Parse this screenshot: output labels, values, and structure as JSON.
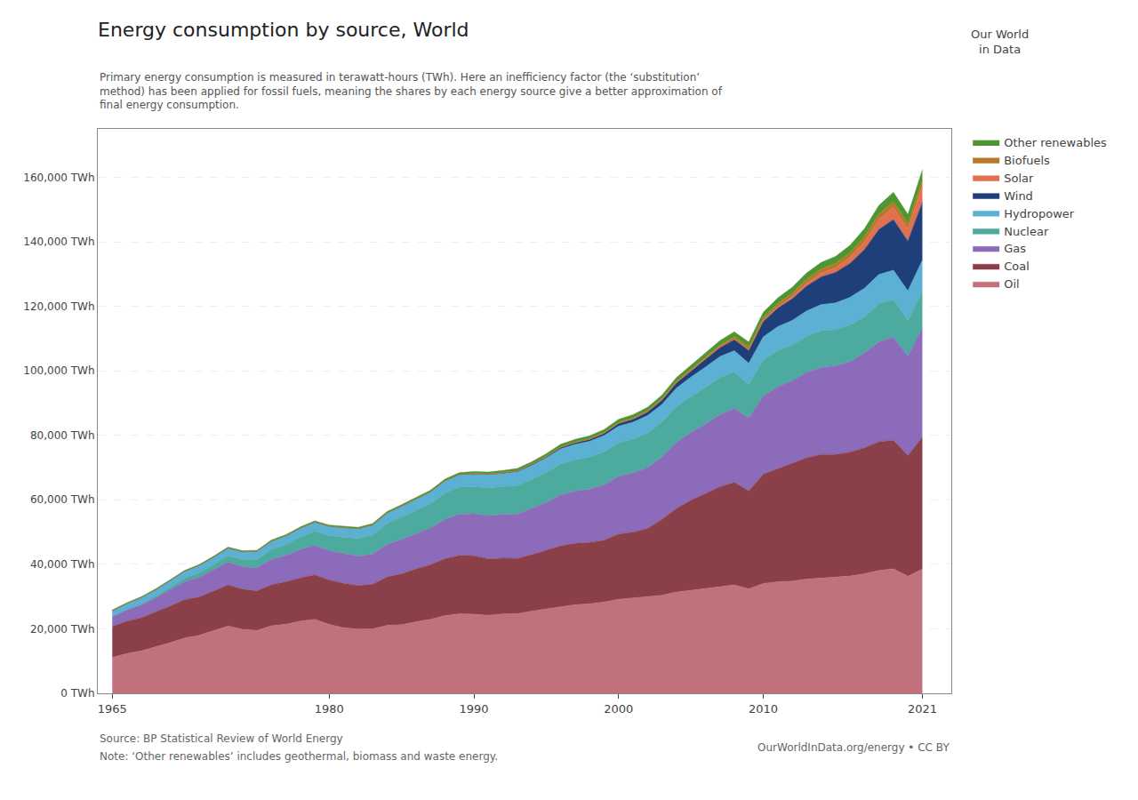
{
  "chart_data": {
    "type": "area",
    "title": "Energy consumption by source, World",
    "subtitle": "Primary energy consumption is measured in terawatt-hours (TWh). Here an inefficiency factor (the ‘substitution’\nmethod) has been applied for fossil fuels, meaning the shares by each energy source give a better approximation of\nfinal energy consumption.",
    "annotations": [
      "Source: BP Statistical Review of World Energy",
      "Note: ‘Other renewables’ includes geothermal, biomass and waste energy.",
      "OurWorldInData.org/energy • CC BY",
      "Our World\nin Data"
    ],
    "stacked": true,
    "grid": "y",
    "legend": "right",
    "x": [
      1965,
      1966,
      1967,
      1968,
      1969,
      1970,
      1971,
      1972,
      1973,
      1974,
      1975,
      1976,
      1977,
      1978,
      1979,
      1980,
      1981,
      1982,
      1983,
      1984,
      1985,
      1986,
      1987,
      1988,
      1989,
      1990,
      1991,
      1992,
      1993,
      1994,
      1995,
      1996,
      1997,
      1998,
      1999,
      2000,
      2001,
      2002,
      2003,
      2004,
      2005,
      2006,
      2007,
      2008,
      2009,
      2010,
      2011,
      2012,
      2013,
      2014,
      2015,
      2016,
      2017,
      2018,
      2019,
      2020,
      2021
    ],
    "xlim": [
      1964,
      2023
    ],
    "xticks": [
      1965,
      1980,
      1990,
      2000,
      2010,
      2021
    ],
    "ylim": [
      0,
      175000
    ],
    "yticks": [
      {
        "value": 0,
        "label": "0 TWh"
      },
      {
        "value": 20000,
        "label": "20,000 TWh"
      },
      {
        "value": 40000,
        "label": "40,000 TWh"
      },
      {
        "value": 60000,
        "label": "60,000 TWh"
      },
      {
        "value": 80000,
        "label": "80,000 TWh"
      },
      {
        "value": 100000,
        "label": "100,000 TWh"
      },
      {
        "value": 120000,
        "label": "120,000 TWh"
      },
      {
        "value": 140000,
        "label": "140,000 TWh"
      },
      {
        "value": 160000,
        "label": "160,000 TWh"
      }
    ],
    "series": [
      {
        "name": "Oil",
        "color": "#c0717c",
        "values": [
          11104,
          12301,
          13174,
          14326,
          15690,
          17135,
          17990,
          19424,
          20856,
          19839,
          19488,
          20952,
          21419,
          22396,
          22916,
          21382,
          20339,
          19911,
          19980,
          21073,
          21256,
          22198,
          22949,
          24094,
          24657,
          24533,
          24207,
          24622,
          24696,
          25475,
          26177,
          26857,
          27458,
          27779,
          28309,
          29149,
          29496,
          30017,
          30394,
          31406,
          32001,
          32563,
          33171,
          33617,
          32407,
          34035,
          34559,
          34808,
          35399,
          35685,
          35928,
          36359,
          37059,
          38103,
          38609,
          36310,
          38501
        ]
      },
      {
        "name": "Coal",
        "color": "#8b4049",
        "values": [
          9613,
          10024,
          10273,
          10838,
          11373,
          11893,
          11906,
          12258,
          12761,
          12459,
          12261,
          12773,
          13135,
          13435,
          13838,
          13731,
          13774,
          13515,
          13841,
          15017,
          15781,
          16406,
          16939,
          17644,
          18118,
          18126,
          17508,
          17276,
          17104,
          17519,
          18116,
          18886,
          19076,
          18991,
          19186,
          20285,
          20457,
          21087,
          23552,
          25918,
          27862,
          29378,
          30851,
          31808,
          30387,
          33869,
          35007,
          36399,
          37664,
          38412,
          38107,
          38420,
          39087,
          39919,
          39866,
          37430,
          40941
        ]
      },
      {
        "name": "Gas",
        "color": "#8b6bba",
        "values": [
          3066,
          3498,
          3939,
          4429,
          5024,
          5590,
          6067,
          6569,
          7081,
          6980,
          7199,
          7820,
          8200,
          8722,
          9120,
          9118,
          9250,
          9118,
          9376,
          10165,
          10741,
          10966,
          11400,
          12210,
          12770,
          13014,
          13345,
          13537,
          13793,
          14335,
          14962,
          15818,
          16186,
          16531,
          17142,
          17873,
          18378,
          18949,
          19401,
          20492,
          21000,
          21572,
          22415,
          22936,
          22567,
          24371,
          25432,
          25759,
          26406,
          26916,
          27509,
          28073,
          29433,
          30981,
          31918,
          30880,
          33853
        ]
      },
      {
        "name": "Nuclear",
        "color": "#4daa9e",
        "values": [
          71,
          175,
          385,
          590,
          793,
          1056,
          1432,
          1647,
          1945,
          2227,
          2570,
          3039,
          3380,
          3889,
          4405,
          4674,
          5034,
          5452,
          5888,
          6419,
          6891,
          7224,
          7529,
          8198,
          8392,
          8369,
          8624,
          8608,
          8853,
          8999,
          9232,
          9516,
          9669,
          9932,
          10248,
          10394,
          10475,
          10712,
          10756,
          11039,
          11181,
          11375,
          11534,
          11249,
          10269,
          11106,
          11287,
          11009,
          11200,
          11400,
          11198,
          11313,
          11185,
          11844,
          11594,
          11024,
          11488
        ]
      },
      {
        "name": "Hydropower",
        "color": "#5bb0d4",
        "values": [
          1768,
          1847,
          1942,
          1974,
          2088,
          2170,
          2251,
          2329,
          2422,
          2423,
          2512,
          2622,
          2714,
          2800,
          2849,
          2913,
          3033,
          3085,
          3162,
          3265,
          3371,
          3502,
          3607,
          3696,
          3829,
          3916,
          4027,
          4100,
          4202,
          4320,
          4512,
          4724,
          4795,
          4916,
          5020,
          5148,
          5238,
          5338,
          5479,
          5795,
          5982,
          6220,
          6418,
          6628,
          6716,
          7119,
          7413,
          7604,
          7896,
          8107,
          8299,
          8614,
          8833,
          9018,
          9226,
          9119,
          9499
        ]
      },
      {
        "name": "Wind",
        "color": "#1e3f7a",
        "values": [
          0,
          0,
          0,
          0,
          0,
          0,
          0,
          0,
          0,
          0,
          0,
          0,
          0,
          0,
          0,
          0,
          0,
          0,
          0,
          18,
          25,
          37,
          55,
          75,
          95,
          127,
          168,
          197,
          248,
          302,
          388,
          453,
          527,
          615,
          712,
          845,
          994,
          1150,
          1348,
          1599,
          1897,
          2285,
          2784,
          3430,
          3995,
          4799,
          5713,
          6714,
          7693,
          8594,
          9477,
          10510,
          11989,
          13964,
          15676,
          15463,
          17983
        ]
      },
      {
        "name": "Solar",
        "color": "#e07050",
        "values": [
          0,
          0,
          0,
          0,
          0,
          0,
          0,
          0,
          0,
          0,
          0,
          0,
          0,
          0,
          0,
          0,
          0,
          0,
          0,
          0,
          0,
          0,
          0,
          0,
          0,
          0,
          0,
          0,
          0,
          0,
          0,
          0,
          0,
          0,
          0,
          4,
          9,
          13,
          18,
          28,
          38,
          56,
          74,
          115,
          153,
          244,
          390,
          593,
          891,
          1100,
          1399,
          1826,
          2437,
          3132,
          3806,
          3681,
          4978
        ]
      },
      {
        "name": "Biofuels",
        "color": "#b87828",
        "values": [
          0,
          0,
          0,
          0,
          0,
          0,
          0,
          0,
          0,
          0,
          0,
          0,
          0,
          0,
          0,
          0,
          0,
          0,
          0,
          0,
          0,
          0,
          0,
          0,
          0,
          97,
          109,
          119,
          131,
          141,
          162,
          181,
          200,
          221,
          248,
          281,
          311,
          349,
          399,
          452,
          511,
          572,
          651,
          750,
          820,
          902,
          997,
          1099,
          1200,
          1300,
          1379,
          1453,
          1555,
          1649,
          1748,
          1697,
          1821
        ]
      },
      {
        "name": "Other renewables",
        "color": "#4e9632",
        "values": [
          202,
          210,
          216,
          228,
          237,
          248,
          257,
          268,
          278,
          286,
          298,
          309,
          326,
          343,
          356,
          369,
          386,
          397,
          409,
          426,
          445,
          467,
          495,
          528,
          557,
          587,
          617,
          648,
          680,
          720,
          757,
          798,
          840,
          878,
          919,
          967,
          1019,
          1072,
          1127,
          1197,
          1275,
          1359,
          1448,
          1539,
          1580,
          1681,
          1785,
          1877,
          1979,
          2079,
          2181,
          2323,
          2498,
          2697,
          2903,
          2897,
          3197
        ]
      }
    ]
  }
}
